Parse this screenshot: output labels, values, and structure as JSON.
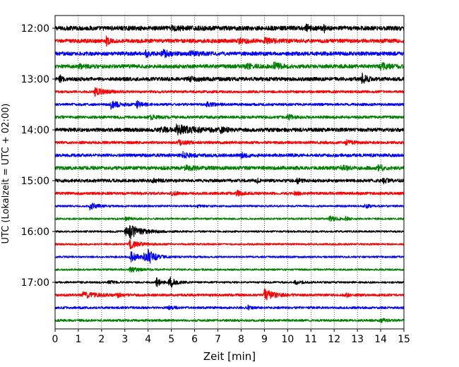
{
  "chart_data": {
    "type": "line",
    "xlabel": "Zeit  [min]",
    "ylabel": "UTC (Lokalzeit = UTC + 02:00)",
    "xlim": [
      0,
      15
    ],
    "x_ticks": [
      0,
      1,
      2,
      3,
      4,
      5,
      6,
      7,
      8,
      9,
      10,
      11,
      12,
      13,
      14,
      15
    ],
    "y_tick_labels": [
      "12:00",
      "13:00",
      "14:00",
      "15:00",
      "16:00",
      "17:00"
    ],
    "grid": "vertical dotted",
    "trace_colors": [
      "#000000",
      "#ff0000",
      "#0000ff",
      "#008000"
    ],
    "trace_interval_minutes": 15,
    "traces": [
      {
        "start": "12:00",
        "color": "#000000",
        "noise": 0.35,
        "events": [
          [
            11.55,
            0.8,
            0.05
          ],
          [
            10.8,
            0.4,
            0.2
          ],
          [
            5.0,
            0.25,
            0.5
          ]
        ]
      },
      {
        "start": "12:15",
        "color": "#ff0000",
        "noise": 0.3,
        "events": [
          [
            2.2,
            0.6,
            0.1
          ],
          [
            9.0,
            0.35,
            0.5
          ],
          [
            7.9,
            0.3,
            0.4
          ]
        ]
      },
      {
        "start": "12:30",
        "color": "#0000ff",
        "noise": 0.3,
        "events": [
          [
            4.6,
            0.55,
            0.3
          ],
          [
            3.9,
            0.4,
            0.2
          ],
          [
            5.8,
            0.3,
            0.3
          ]
        ]
      },
      {
        "start": "12:45",
        "color": "#008000",
        "noise": 0.3,
        "events": [
          [
            9.4,
            0.55,
            0.3
          ],
          [
            8.2,
            0.4,
            0.3
          ],
          [
            14.0,
            0.4,
            0.4
          ],
          [
            1.0,
            0.3,
            0.3
          ]
        ]
      },
      {
        "start": "13:00",
        "color": "#000000",
        "noise": 0.3,
        "events": [
          [
            13.2,
            0.7,
            0.2
          ],
          [
            0.2,
            0.6,
            0.1
          ],
          [
            5.7,
            0.3,
            0.4
          ]
        ]
      },
      {
        "start": "13:15",
        "color": "#ff0000",
        "noise": 0.2,
        "events": [
          [
            1.7,
            0.55,
            0.4
          ]
        ]
      },
      {
        "start": "13:30",
        "color": "#0000ff",
        "noise": 0.2,
        "events": [
          [
            2.4,
            0.6,
            0.3
          ],
          [
            3.5,
            0.55,
            0.2
          ],
          [
            6.5,
            0.3,
            0.3
          ]
        ]
      },
      {
        "start": "13:45",
        "color": "#008000",
        "noise": 0.22,
        "events": [
          [
            10.0,
            0.4,
            0.2
          ],
          [
            4.1,
            0.25,
            0.3
          ]
        ]
      },
      {
        "start": "14:00",
        "color": "#000000",
        "noise": 0.3,
        "events": [
          [
            5.2,
            0.65,
            0.8
          ],
          [
            4.5,
            0.4,
            0.3
          ],
          [
            7.1,
            0.3,
            0.3
          ]
        ]
      },
      {
        "start": "14:15",
        "color": "#ff0000",
        "noise": 0.22,
        "events": [
          [
            5.3,
            0.3,
            0.4
          ],
          [
            12.5,
            0.3,
            0.3
          ]
        ]
      },
      {
        "start": "14:30",
        "color": "#0000ff",
        "noise": 0.25,
        "events": [
          [
            5.5,
            0.4,
            0.3
          ],
          [
            8.0,
            0.3,
            0.3
          ]
        ]
      },
      {
        "start": "14:45",
        "color": "#008000",
        "noise": 0.28,
        "events": [
          [
            5.6,
            0.5,
            0.3
          ],
          [
            13.9,
            0.45,
            0.2
          ],
          [
            12.3,
            0.3,
            0.3
          ]
        ]
      },
      {
        "start": "15:00",
        "color": "#000000",
        "noise": 0.25,
        "events": [
          [
            8.7,
            0.65,
            0.05
          ],
          [
            10.4,
            0.55,
            0.1
          ],
          [
            14.1,
            0.4,
            0.2
          ],
          [
            4.2,
            0.3,
            0.2
          ]
        ]
      },
      {
        "start": "15:15",
        "color": "#ff0000",
        "noise": 0.22,
        "events": [
          [
            7.8,
            0.45,
            0.2
          ],
          [
            5.0,
            0.3,
            0.2
          ],
          [
            10.3,
            0.3,
            0.2
          ]
        ]
      },
      {
        "start": "15:30",
        "color": "#0000ff",
        "noise": 0.15,
        "events": [
          [
            1.5,
            0.55,
            0.3
          ],
          [
            13.3,
            0.35,
            0.2
          ],
          [
            6.1,
            0.2,
            0.2
          ]
        ]
      },
      {
        "start": "15:45",
        "color": "#008000",
        "noise": 0.15,
        "events": [
          [
            11.8,
            0.4,
            0.3
          ],
          [
            12.5,
            0.4,
            0.1
          ],
          [
            3.0,
            0.25,
            0.3
          ]
        ]
      },
      {
        "start": "16:00",
        "color": "#000000",
        "noise": 0.15,
        "events": [
          [
            3.2,
            1.0,
            0.5
          ],
          [
            3.0,
            0.7,
            0.2
          ]
        ]
      },
      {
        "start": "16:15",
        "color": "#ff0000",
        "noise": 0.15,
        "events": [
          [
            3.2,
            0.65,
            0.4
          ]
        ]
      },
      {
        "start": "16:30",
        "color": "#0000ff",
        "noise": 0.15,
        "events": [
          [
            3.25,
            0.95,
            0.3
          ],
          [
            4.0,
            0.95,
            0.3
          ],
          [
            3.8,
            0.5,
            0.2
          ]
        ]
      },
      {
        "start": "16:45",
        "color": "#008000",
        "noise": 0.15,
        "events": [
          [
            3.2,
            0.35,
            0.4
          ]
        ]
      },
      {
        "start": "17:00",
        "color": "#000000",
        "noise": 0.15,
        "events": [
          [
            4.35,
            1.1,
            0.15
          ],
          [
            4.9,
            1.0,
            0.25
          ],
          [
            10.3,
            0.3,
            0.3
          ],
          [
            2.3,
            0.2,
            0.3
          ]
        ]
      },
      {
        "start": "17:15",
        "color": "#ff0000",
        "noise": 0.2,
        "events": [
          [
            9.0,
            0.95,
            0.35
          ],
          [
            1.2,
            0.4,
            0.6
          ],
          [
            2.7,
            0.35,
            0.1
          ],
          [
            12.5,
            0.35,
            0.1
          ]
        ]
      },
      {
        "start": "17:30",
        "color": "#0000ff",
        "noise": 0.18,
        "events": [
          [
            8.3,
            0.3,
            0.1
          ],
          [
            4.9,
            0.25,
            0.2
          ]
        ]
      },
      {
        "start": "17:45",
        "color": "#008000",
        "noise": 0.18,
        "events": [
          [
            14.0,
            0.25,
            0.3
          ]
        ]
      }
    ]
  }
}
